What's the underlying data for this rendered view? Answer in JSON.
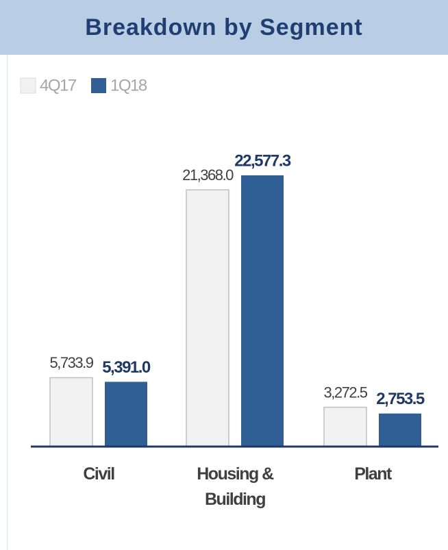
{
  "chart_data": {
    "type": "bar",
    "title": "Breakdown by Segment",
    "categories": [
      "Civil",
      "Housing & Building",
      "Plant"
    ],
    "series": [
      {
        "name": "4Q17",
        "color": "#f2f2f2",
        "values": [
          5733.9,
          21368.0,
          3272.5
        ],
        "value_labels": [
          "5,733.9",
          "21,368.0",
          "3,272.5"
        ]
      },
      {
        "name": "1Q18",
        "color": "#2f5f94",
        "values": [
          5391.0,
          22577.3,
          2753.5
        ],
        "value_labels": [
          "5,391.0",
          "22,577.3",
          "2,753.5"
        ]
      }
    ]
  }
}
